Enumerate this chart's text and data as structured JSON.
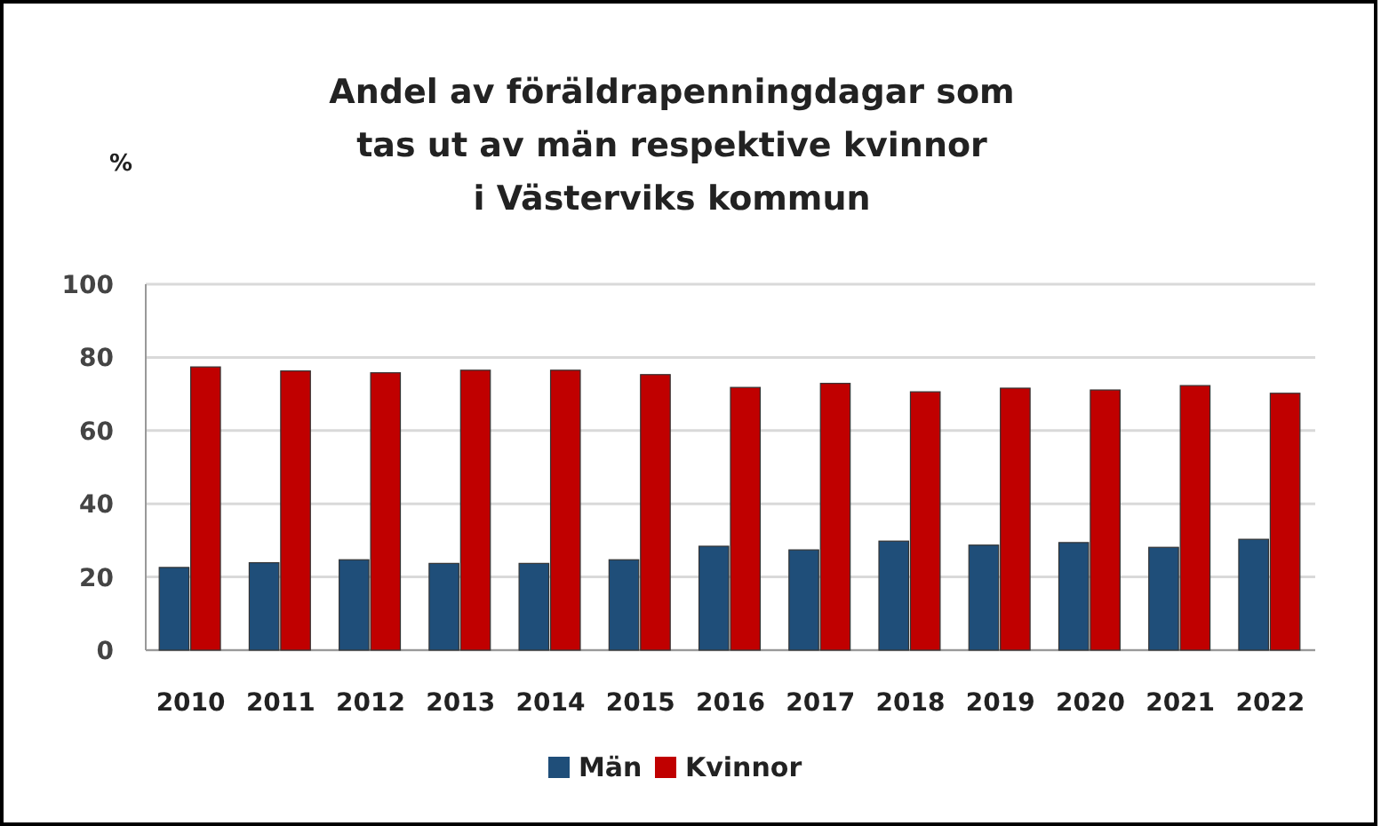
{
  "chart_data": {
    "type": "bar",
    "title": "Andel av föräldrapenningdagar som\ntas ut av män respektive kvinnor\ni Västerviks kommun",
    "ylabel": "%",
    "categories": [
      "2010",
      "2011",
      "2012",
      "2013",
      "2014",
      "2015",
      "2016",
      "2017",
      "2018",
      "2019",
      "2020",
      "2021",
      "2022"
    ],
    "series": [
      {
        "name": "Män",
        "color": "#1f4e79",
        "values": [
          22.6,
          23.9,
          24.7,
          23.7,
          23.7,
          24.7,
          28.4,
          27.4,
          29.8,
          28.7,
          29.4,
          28.1,
          30.3
        ]
      },
      {
        "name": "Kvinnor",
        "color": "#c00000",
        "values": [
          77.4,
          76.3,
          75.8,
          76.5,
          76.5,
          75.3,
          71.8,
          72.9,
          70.6,
          71.6,
          71.1,
          72.3,
          70.2
        ]
      }
    ],
    "ylim": [
      0,
      100
    ],
    "yticks": [
      0,
      20,
      40,
      60,
      80,
      100
    ],
    "grid": "y",
    "legend": "bottom"
  }
}
